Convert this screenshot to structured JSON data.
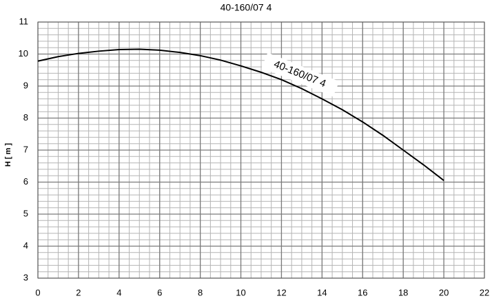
{
  "chart_data": {
    "type": "line",
    "title": "40-160/07 4",
    "y_label": "H [ m ]",
    "annotation": "40-160/07 4",
    "x": [
      0,
      1,
      2,
      3,
      4,
      5,
      6,
      7,
      8,
      9,
      10,
      11,
      12,
      13,
      14,
      15,
      16,
      17,
      18,
      19,
      20
    ],
    "series": [
      {
        "name": "40-160/07 4",
        "color": "#000000",
        "values": [
          9.78,
          9.92,
          10.02,
          10.09,
          10.14,
          10.15,
          10.12,
          10.05,
          9.95,
          9.81,
          9.63,
          9.43,
          9.2,
          8.92,
          8.6,
          8.26,
          7.88,
          7.46,
          7.0,
          6.54,
          6.05
        ]
      }
    ],
    "xlim": [
      0,
      22
    ],
    "xticks": [
      0,
      2,
      4,
      6,
      8,
      10,
      12,
      14,
      16,
      18,
      20,
      22
    ],
    "ylim": [
      3,
      11
    ],
    "yticks": [
      3,
      4,
      5,
      6,
      7,
      8,
      9,
      10,
      11
    ],
    "grid": true,
    "minor_grid": {
      "x": 0.5,
      "y": 0.2
    }
  }
}
